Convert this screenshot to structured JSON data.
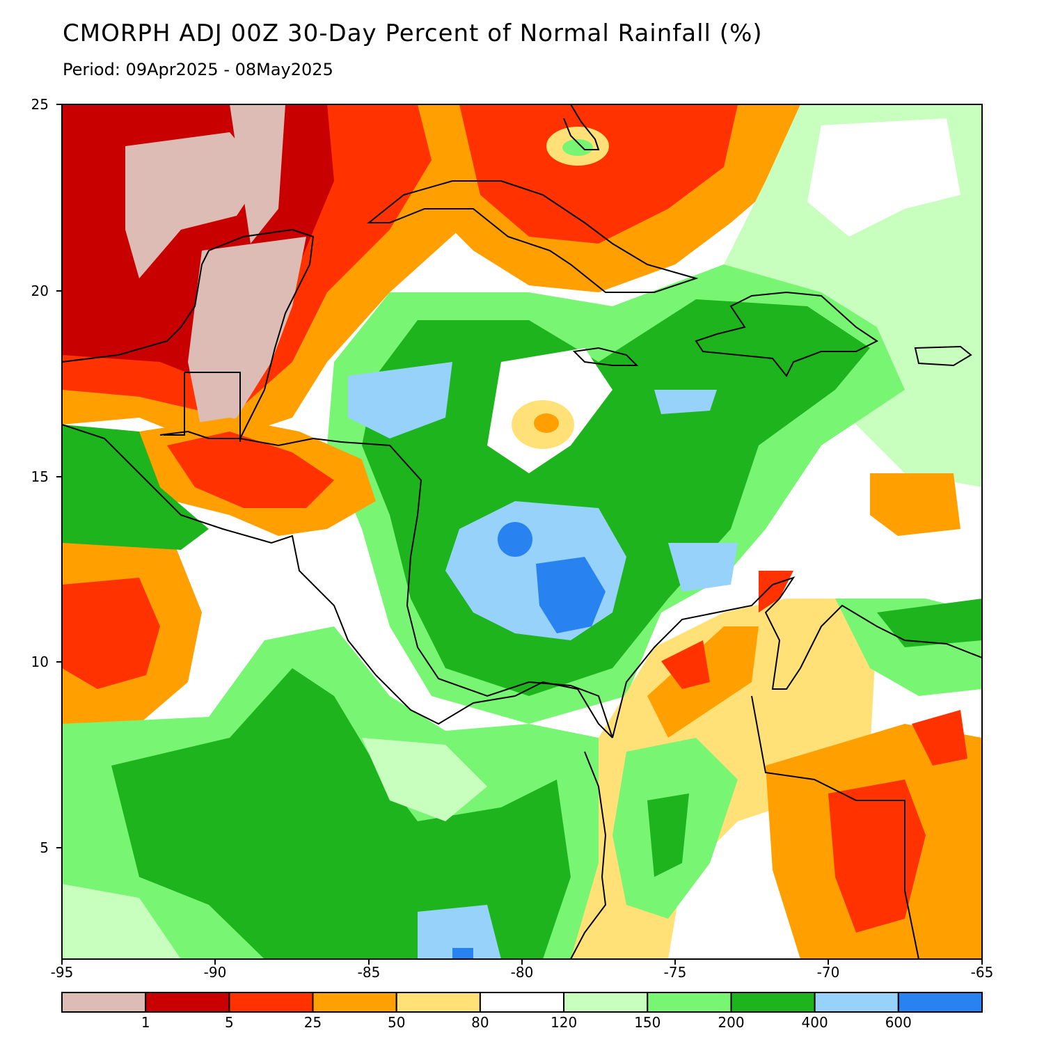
{
  "title": "CMORPH ADJ 00Z 30-Day Percent of Normal Rainfall (%)",
  "subtitle": "Period: 09Apr2025 - 08May2025",
  "axes": {
    "x_ticks": [
      "-95",
      "-90",
      "-85",
      "-80",
      "-75",
      "-70",
      "-65"
    ],
    "y_ticks": [
      "25",
      "20",
      "15",
      "10",
      "5"
    ],
    "lon_range": [
      -95,
      -65
    ],
    "lat_range": [
      2.3,
      25
    ]
  },
  "legend": {
    "labels": [
      "1",
      "5",
      "25",
      "50",
      "80",
      "120",
      "150",
      "200",
      "400",
      "600"
    ],
    "colors": [
      "#dcbcb4",
      "#c80000",
      "#ff3200",
      "#ffa000",
      "#ffe178",
      "#ffffff",
      "#c8ffbe",
      "#78f573",
      "#1eb41e",
      "#96d2fa",
      "#2882f0"
    ]
  }
}
